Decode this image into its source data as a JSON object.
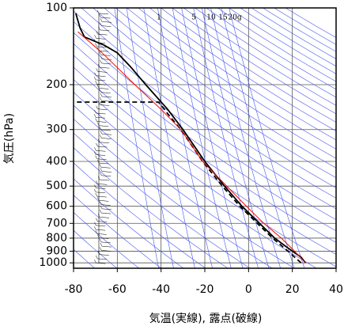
{
  "chart_data": {
    "type": "line",
    "ylog": true,
    "x_label": "気温(実線), 露点(破線)",
    "y_label": "気圧(hPa)",
    "mixing_ratio_labels": [
      "1",
      "5",
      "10",
      "15",
      "20g"
    ],
    "xlim": [
      -80,
      40
    ],
    "xticks": [
      -80,
      -60,
      -40,
      -20,
      0,
      20,
      40
    ],
    "ylim": [
      1050,
      100
    ],
    "yticks": [
      100,
      200,
      300,
      400,
      500,
      600,
      700,
      800,
      900,
      1000
    ],
    "grid": true,
    "series": [
      {
        "color": "#000000",
        "dash": false,
        "x": [
          26,
          24,
          20,
          16,
          12,
          5,
          -3,
          -11,
          -20,
          -30,
          -37,
          -47,
          -54,
          -60,
          -66,
          -75,
          -77,
          -79
        ],
        "y": [
          1000,
          950,
          900,
          850,
          800,
          700,
          600,
          500,
          400,
          300,
          250,
          200,
          170,
          150,
          140,
          130,
          120,
          105
        ]
      },
      {
        "color": "#000000",
        "dash": true,
        "x": [
          24,
          18,
          11,
          4,
          -4,
          -12,
          -21,
          -31,
          -37,
          -41,
          -80
        ],
        "y": [
          1000,
          900,
          800,
          700,
          600,
          500,
          400,
          300,
          260,
          234,
          234
        ]
      },
      {
        "color": "#ff0000",
        "dash": false,
        "x": [
          26,
          21,
          15,
          7,
          -1,
          -10,
          -21,
          -31,
          -40,
          -52,
          -67,
          -78
        ],
        "y": [
          1000,
          900,
          800,
          700,
          600,
          500,
          400,
          300,
          250,
          200,
          150,
          124
        ]
      }
    ]
  }
}
